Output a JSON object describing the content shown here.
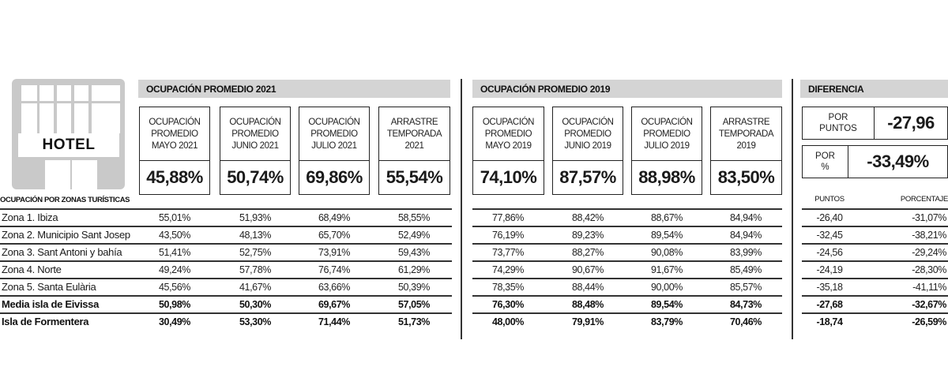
{
  "icon": {
    "name": "hotel-building-icon",
    "sign_text": "HOTEL"
  },
  "section_2021": {
    "title": "OCUPACIÓN PROMEDIO 2021",
    "boxes": [
      {
        "label_lines": [
          "OCUPACIÓN",
          "PROMEDIO",
          "MAYO 2021"
        ],
        "value": "45,88%"
      },
      {
        "label_lines": [
          "OCUPACIÓN",
          "PROMEDIO",
          "JUNIO 2021"
        ],
        "value": "50,74%"
      },
      {
        "label_lines": [
          "OCUPACIÓN",
          "PROMEDIO",
          "JULIO 2021"
        ],
        "value": "69,86%"
      },
      {
        "label_lines": [
          "ARRASTRE",
          "TEMPORADA",
          "2021"
        ],
        "value": "55,54%"
      }
    ]
  },
  "section_2019": {
    "title": "OCUPACIÓN PROMEDIO 2019",
    "boxes": [
      {
        "label_lines": [
          "OCUPACIÓN",
          "PROMEDIO",
          "MAYO 2019"
        ],
        "value": "74,10%"
      },
      {
        "label_lines": [
          "OCUPACIÓN",
          "PROMEDIO",
          "JUNIO 2019"
        ],
        "value": "87,57%"
      },
      {
        "label_lines": [
          "OCUPACIÓN",
          "PROMEDIO",
          "JULIO 2019"
        ],
        "value": "88,98%"
      },
      {
        "label_lines": [
          "ARRASTRE",
          "TEMPORADA",
          "2019"
        ],
        "value": "83,50%"
      }
    ]
  },
  "difference": {
    "title": "DIFERENCIA",
    "points": {
      "label_lines": [
        "POR",
        "PUNTOS"
      ],
      "value": "-27,96"
    },
    "percent": {
      "label_lines": [
        "POR",
        "%"
      ],
      "value": "-33,49%"
    },
    "col_headers": [
      "PUNTOS",
      "PORCENTAJE"
    ]
  },
  "table": {
    "caption": "OCUPACIÓN POR ZONAS TURÍSTICAS",
    "rows": [
      {
        "label": "Zona 1. Ibiza",
        "bold": false,
        "y2021": [
          "55,01%",
          "51,93%",
          "68,49%",
          "58,55%"
        ],
        "y2019": [
          "77,86%",
          "88,42%",
          "88,67%",
          "84,94%"
        ],
        "diff": [
          "-26,40",
          "-31,07%"
        ]
      },
      {
        "label": "Zona 2. Municipio Sant Josep",
        "bold": false,
        "y2021": [
          "43,50%",
          "48,13%",
          "65,70%",
          "52,49%"
        ],
        "y2019": [
          "76,19%",
          "89,23%",
          "89,54%",
          "84,94%"
        ],
        "diff": [
          "-32,45",
          "-38,21%"
        ]
      },
      {
        "label": "Zona 3. Sant Antoni y bahía",
        "bold": false,
        "y2021": [
          "51,41%",
          "52,75%",
          "73,91%",
          "59,43%"
        ],
        "y2019": [
          "73,77%",
          "88,27%",
          "90,08%",
          "83,99%"
        ],
        "diff": [
          "-24,56",
          "-29,24%"
        ]
      },
      {
        "label": "Zona 4. Norte",
        "bold": false,
        "y2021": [
          "49,24%",
          "57,78%",
          "76,74%",
          "61,29%"
        ],
        "y2019": [
          "74,29%",
          "90,67%",
          "91,67%",
          "85,49%"
        ],
        "diff": [
          "-24,19",
          "-28,30%"
        ]
      },
      {
        "label": "Zona 5. Santa Eulària",
        "bold": false,
        "y2021": [
          "45,56%",
          "41,67%",
          "63,66%",
          "50,39%"
        ],
        "y2019": [
          "78,35%",
          "88,44%",
          "90,00%",
          "85,57%"
        ],
        "diff": [
          "-35,18",
          "-41,11%"
        ]
      },
      {
        "label": "Media isla de Eivissa",
        "bold": true,
        "y2021": [
          "50,98%",
          "50,30%",
          "69,67%",
          "57,05%"
        ],
        "y2019": [
          "76,30%",
          "88,48%",
          "89,54%",
          "84,73%"
        ],
        "diff": [
          "-27,68",
          "-32,67%"
        ]
      },
      {
        "label": "Isla de Formentera",
        "bold": true,
        "y2021": [
          "30,49%",
          "53,30%",
          "71,44%",
          "51,73%"
        ],
        "y2019": [
          "48,00%",
          "79,91%",
          "83,79%",
          "70,46%"
        ],
        "diff": [
          "-18,74",
          "-26,59%"
        ]
      }
    ]
  },
  "colors": {
    "header_bar": "#d4d4d4",
    "icon_gray": "#c9c9c9",
    "rule": "#333333",
    "text": "#1a1a1a"
  }
}
